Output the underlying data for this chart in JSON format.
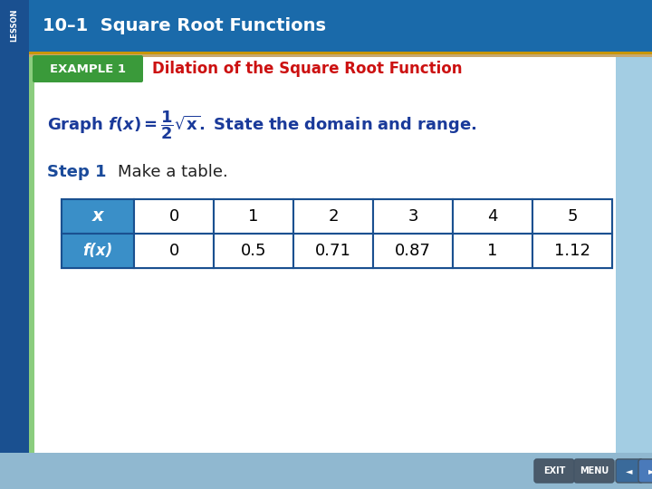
{
  "bg_color": "#b8d4e8",
  "header_bg_top": "#1a6aaa",
  "header_bg_bottom": "#1a5a9a",
  "header_text": "10–1  Square Root Functions",
  "header_text_color": "#ffffff",
  "lesson_tab_color": "#1a5090",
  "lesson_text": "LESSON",
  "gold_line_color": "#c8960a",
  "tan_line_color": "#c8a870",
  "example_badge_color_top": "#3a9a3a",
  "example_badge_color_bot": "#2a7a2a",
  "example_badge_text": "EXAMPLE 1",
  "example_title": "Dilation of the Square Root Function",
  "example_title_color": "#cc1111",
  "step_label": "Step 1",
  "step_text": "Make a table.",
  "step_label_color": "#1a4a9a",
  "table_header_bg": "#3a8fc8",
  "table_border_color": "#1a5090",
  "x_label": "x",
  "fx_label": "f(x)",
  "x_values": [
    "0",
    "1",
    "2",
    "3",
    "4",
    "5"
  ],
  "fx_values": [
    "0",
    "0.5",
    "0.71",
    "0.87",
    "1",
    "1.12"
  ],
  "right_side_color": "#90c8e0",
  "bottom_bar_color": "#90b8d0",
  "content_left_stripe": "#5ab848",
  "content_bg": "#f0f8ff"
}
